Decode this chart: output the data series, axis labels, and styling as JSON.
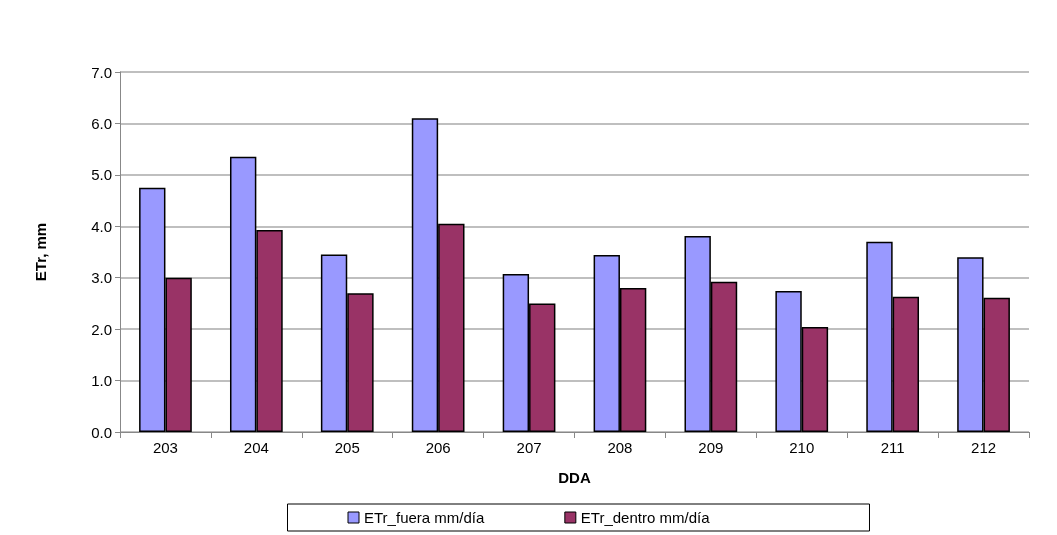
{
  "chart_data": {
    "type": "bar",
    "xlabel": "DDA",
    "ylabel": "ETr, mm",
    "categories": [
      "203",
      "204",
      "205",
      "206",
      "207",
      "208",
      "209",
      "210",
      "211",
      "212"
    ],
    "series": [
      {
        "name": "ETr_fuera mm/día",
        "color": "#9999ff",
        "values": [
          4.75,
          5.35,
          3.45,
          6.1,
          3.07,
          3.44,
          3.81,
          2.74,
          3.7,
          3.4
        ]
      },
      {
        "name": "ETr_dentro mm/día",
        "color": "#993366",
        "values": [
          3.0,
          3.93,
          2.7,
          4.05,
          2.5,
          2.8,
          2.92,
          2.04,
          2.63,
          2.61
        ]
      }
    ],
    "ylim": [
      0,
      7
    ],
    "yticks": [
      {
        "value": 0,
        "label": "0.0"
      },
      {
        "value": 1,
        "label": "1.0"
      },
      {
        "value": 2,
        "label": "2.0"
      },
      {
        "value": 3,
        "label": "3.0"
      },
      {
        "value": 4,
        "label": "4.0"
      },
      {
        "value": 5,
        "label": "5.0"
      },
      {
        "value": 6,
        "label": "6.0"
      },
      {
        "value": 7,
        "label": "7.0"
      }
    ],
    "grid": "y",
    "legend": "bottom"
  }
}
